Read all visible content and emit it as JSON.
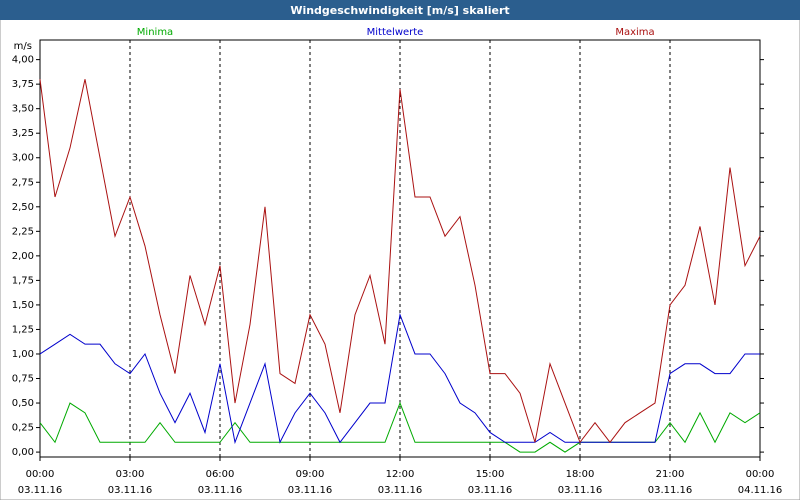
{
  "chart_data": {
    "type": "line",
    "title": "Windgeschwindigkeit [m/s] skaliert",
    "y_unit": "m/s",
    "x": [
      0,
      0.5,
      1,
      1.5,
      2,
      2.5,
      3,
      3.5,
      4,
      4.5,
      5,
      5.5,
      6,
      6.5,
      7,
      7.5,
      8,
      8.5,
      9,
      9.5,
      10,
      10.5,
      11,
      11.5,
      12,
      12.5,
      13,
      13.5,
      14,
      14.5,
      15,
      15.5,
      16,
      16.5,
      17,
      17.5,
      18,
      18.5,
      19,
      19.5,
      20,
      20.5,
      21,
      21.5,
      22,
      22.5,
      23,
      23.5,
      24
    ],
    "series": [
      {
        "name": "Minima",
        "color": "#00aa00",
        "values": [
          0.3,
          0.1,
          0.5,
          0.4,
          0.1,
          0.1,
          0.1,
          0.1,
          0.3,
          0.1,
          0.1,
          0.1,
          0.1,
          0.3,
          0.1,
          0.1,
          0.1,
          0.1,
          0.1,
          0.1,
          0.1,
          0.1,
          0.1,
          0.1,
          0.5,
          0.1,
          0.1,
          0.1,
          0.1,
          0.1,
          0.1,
          0.1,
          0,
          0,
          0.1,
          0,
          0.1,
          0.1,
          0.1,
          0.1,
          0.1,
          0.1,
          0.3,
          0.1,
          0.4,
          0.1,
          0.4,
          0.3,
          0.4
        ]
      },
      {
        "name": "Mittelwerte",
        "color": "#0000cc",
        "values": [
          1.0,
          1.1,
          1.2,
          1.1,
          1.1,
          0.9,
          0.8,
          1.0,
          0.6,
          0.3,
          0.6,
          0.2,
          0.9,
          0.1,
          0.5,
          0.9,
          0.1,
          0.4,
          0.6,
          0.4,
          0.1,
          0.3,
          0.5,
          0.5,
          1.4,
          1.0,
          1.0,
          0.8,
          0.5,
          0.4,
          0.2,
          0.1,
          0.1,
          0.1,
          0.2,
          0.1,
          0.1,
          0.1,
          0.1,
          0.1,
          0.1,
          0.1,
          0.8,
          0.9,
          0.9,
          0.8,
          0.8,
          1.0,
          1.0
        ]
      },
      {
        "name": "Maxima",
        "color": "#aa1111",
        "values": [
          3.8,
          2.6,
          3.1,
          3.8,
          3.0,
          2.2,
          2.6,
          2.1,
          1.4,
          0.8,
          1.8,
          1.3,
          1.9,
          0.5,
          1.3,
          2.5,
          0.8,
          0.7,
          1.4,
          1.1,
          0.4,
          1.4,
          1.8,
          1.1,
          3.7,
          2.6,
          2.6,
          2.2,
          2.4,
          1.7,
          0.8,
          0.8,
          0.6,
          0.1,
          0.9,
          0.5,
          0.1,
          0.3,
          0.1,
          0.3,
          0.4,
          0.5,
          1.5,
          1.7,
          2.3,
          1.5,
          2.9,
          1.9,
          2.2
        ]
      }
    ],
    "xlim": [
      0,
      24
    ],
    "xticks": [
      {
        "value": 0,
        "label": "00:00"
      },
      {
        "value": 3,
        "label": "03:00"
      },
      {
        "value": 6,
        "label": "06:00"
      },
      {
        "value": 9,
        "label": "09:00"
      },
      {
        "value": 12,
        "label": "12:00"
      },
      {
        "value": 15,
        "label": "15:00"
      },
      {
        "value": 18,
        "label": "18:00"
      },
      {
        "value": 21,
        "label": "21:00"
      },
      {
        "value": 24,
        "label": "00:00"
      }
    ],
    "xtick_dates": [
      "03.11.16",
      "03.11.16",
      "03.11.16",
      "03.11.16",
      "03.11.16",
      "03.11.16",
      "03.11.16",
      "03.11.16",
      "04.11.16"
    ],
    "ylim": [
      -0.05,
      4.2
    ],
    "yticks": [
      {
        "value": 0,
        "label": "0,00"
      },
      {
        "value": 0.25,
        "label": "0,25"
      },
      {
        "value": 0.5,
        "label": "0,50"
      },
      {
        "value": 0.75,
        "label": "0,75"
      },
      {
        "value": 1,
        "label": "1,00"
      },
      {
        "value": 1.25,
        "label": "1,25"
      },
      {
        "value": 1.5,
        "label": "1,50"
      },
      {
        "value": 1.75,
        "label": "1,75"
      },
      {
        "value": 2,
        "label": "2,00"
      },
      {
        "value": 2.25,
        "label": "2,25"
      },
      {
        "value": 2.5,
        "label": "2,50"
      },
      {
        "value": 2.75,
        "label": "2,75"
      },
      {
        "value": 3,
        "label": "3,00"
      },
      {
        "value": 3.25,
        "label": "3,25"
      },
      {
        "value": 3.5,
        "label": "3,50"
      },
      {
        "value": 3.75,
        "label": "3,75"
      },
      {
        "value": 4,
        "label": "4,00"
      }
    ],
    "grid": "x"
  }
}
